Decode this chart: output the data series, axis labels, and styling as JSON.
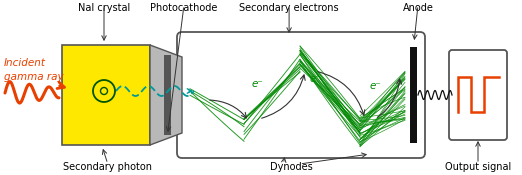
{
  "labels": {
    "nal_crystal": "NaI crystal",
    "photocathode": "Photocathode",
    "secondary_electrons": "Secondary electrons",
    "anode": "Anode",
    "secondary_photon": "Secondary photon",
    "dynodes": "Dynodes",
    "output_signal": "Output signal",
    "incident_gamma": "Incident\ngamma ray",
    "e_minus": "e⁻"
  },
  "colors": {
    "yellow": "#FFE800",
    "gray": "#B8B8B8",
    "dark_strip": "#555555",
    "green": "#008800",
    "orange_red": "#E84000",
    "black": "#111111",
    "white": "#FFFFFF",
    "border": "#555555",
    "teal_wave": "#009999",
    "arrow_dark": "#333333"
  },
  "figsize": [
    5.22,
    1.75
  ],
  "dpi": 100
}
